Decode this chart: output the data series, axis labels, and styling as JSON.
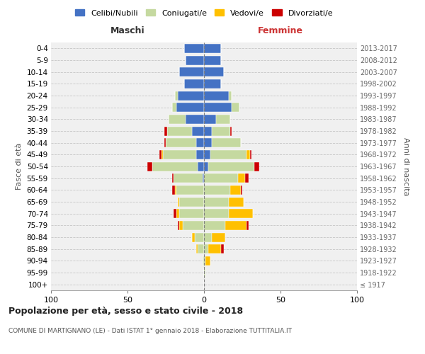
{
  "age_groups": [
    "100+",
    "95-99",
    "90-94",
    "85-89",
    "80-84",
    "75-79",
    "70-74",
    "65-69",
    "60-64",
    "55-59",
    "50-54",
    "45-49",
    "40-44",
    "35-39",
    "30-34",
    "25-29",
    "20-24",
    "15-19",
    "10-14",
    "5-9",
    "0-4"
  ],
  "birth_years": [
    "≤ 1917",
    "1918-1922",
    "1923-1927",
    "1928-1932",
    "1933-1937",
    "1938-1942",
    "1943-1947",
    "1948-1952",
    "1953-1957",
    "1958-1962",
    "1963-1967",
    "1968-1972",
    "1973-1977",
    "1978-1982",
    "1983-1987",
    "1988-1992",
    "1993-1997",
    "1998-2002",
    "2003-2007",
    "2008-2012",
    "2013-2017"
  ],
  "male": {
    "celibi": [
      0,
      0,
      0,
      0,
      0,
      0,
      0,
      0,
      0,
      1,
      4,
      5,
      5,
      8,
      12,
      18,
      17,
      13,
      16,
      12,
      13
    ],
    "coniugati": [
      0,
      0,
      1,
      4,
      6,
      14,
      16,
      16,
      18,
      19,
      30,
      22,
      20,
      16,
      11,
      3,
      2,
      0,
      0,
      0,
      0
    ],
    "vedovi": [
      0,
      0,
      0,
      1,
      2,
      2,
      2,
      1,
      1,
      0,
      0,
      1,
      0,
      0,
      0,
      0,
      0,
      0,
      0,
      0,
      0
    ],
    "divorziati": [
      0,
      0,
      0,
      0,
      0,
      1,
      2,
      0,
      2,
      1,
      3,
      1,
      1,
      2,
      0,
      0,
      0,
      0,
      0,
      0,
      0
    ]
  },
  "female": {
    "nubili": [
      0,
      0,
      0,
      0,
      0,
      0,
      0,
      0,
      0,
      0,
      3,
      4,
      5,
      5,
      8,
      18,
      16,
      11,
      13,
      11,
      11
    ],
    "coniugate": [
      0,
      1,
      1,
      3,
      5,
      14,
      16,
      16,
      17,
      22,
      30,
      24,
      19,
      12,
      9,
      5,
      2,
      0,
      0,
      0,
      0
    ],
    "vedove": [
      0,
      0,
      3,
      8,
      9,
      14,
      16,
      10,
      7,
      5,
      0,
      2,
      0,
      0,
      0,
      0,
      0,
      0,
      0,
      0,
      0
    ],
    "divorziate": [
      0,
      0,
      0,
      2,
      0,
      1,
      0,
      0,
      1,
      2,
      3,
      1,
      0,
      1,
      0,
      0,
      0,
      0,
      0,
      0,
      0
    ]
  },
  "colors": {
    "celibi": "#4472c4",
    "coniugati": "#c5d9a0",
    "vedovi": "#ffc000",
    "divorziati": "#cc0000"
  },
  "title": "Popolazione per età, sesso e stato civile - 2018",
  "subtitle": "COMUNE DI MARTIGNANO (LE) - Dati ISTAT 1° gennaio 2018 - Elaborazione TUTTITALIA.IT",
  "xlabel_left": "Maschi",
  "xlabel_right": "Femmine",
  "ylabel_left": "Fasce di età",
  "ylabel_right": "Anni di nascita",
  "xlim": 100,
  "bg_color": "#f0f0f0",
  "legend_labels": [
    "Celibi/Nubili",
    "Coniugati/e",
    "Vedovi/e",
    "Divorziati/e"
  ]
}
